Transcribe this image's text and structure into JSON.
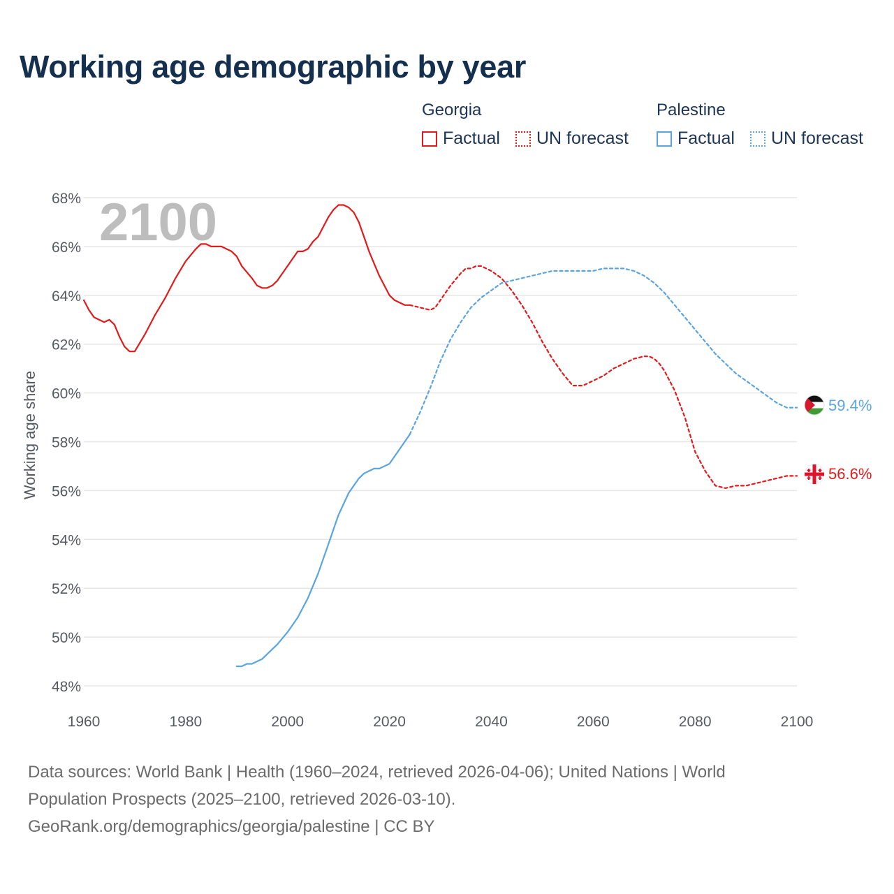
{
  "title": "Working age demographic by year",
  "legend": {
    "groups": [
      {
        "country": "Georgia",
        "factual_label": "Factual",
        "forecast_label": "UN forecast",
        "color": "#e31a1c"
      },
      {
        "country": "Palestine",
        "factual_label": "Factual",
        "forecast_label": "UN forecast",
        "color": "#5aa5e0"
      }
    ]
  },
  "chart_data": {
    "type": "line",
    "title": "Working age demographic by year",
    "xlabel": "",
    "ylabel": "Working age share",
    "xlim": [
      1960,
      2100
    ],
    "ylim": [
      48,
      68
    ],
    "x_ticks": [
      1960,
      1980,
      2000,
      2020,
      2040,
      2060,
      2080,
      2100
    ],
    "x_tick_labels": [
      "1960",
      "1980",
      "2000",
      "2020",
      "2040",
      "2060",
      "2080",
      "2100"
    ],
    "y_ticks": [
      48,
      50,
      52,
      54,
      56,
      58,
      60,
      62,
      64,
      66,
      68
    ],
    "y_tick_labels": [
      "48%",
      "50%",
      "52%",
      "54%",
      "56%",
      "58%",
      "60%",
      "62%",
      "64%",
      "66%",
      "68%"
    ],
    "current_year_label": "2100",
    "series": [
      {
        "name": "Georgia",
        "kind": "Factual",
        "color": "#e31a1c",
        "x": [
          1960,
          1961,
          1962,
          1964,
          1965,
          1966,
          1967,
          1968,
          1969,
          1970,
          1972,
          1974,
          1976,
          1978,
          1980,
          1982,
          1983,
          1984,
          1985,
          1986,
          1987,
          1988,
          1989,
          1990,
          1991,
          1993,
          1994,
          1995,
          1996,
          1997,
          1998,
          2000,
          2002,
          2003,
          2004,
          2005,
          2006,
          2007,
          2008,
          2009,
          2010,
          2011,
          2012,
          2013,
          2014,
          2015,
          2016,
          2017,
          2018,
          2019,
          2020,
          2021,
          2022,
          2023,
          2024
        ],
        "values": [
          63.8,
          63.4,
          63.1,
          62.9,
          63.0,
          62.8,
          62.3,
          61.9,
          61.7,
          61.7,
          62.4,
          63.2,
          63.9,
          64.7,
          65.4,
          65.9,
          66.1,
          66.1,
          66.0,
          66.0,
          66.0,
          65.9,
          65.8,
          65.6,
          65.2,
          64.7,
          64.4,
          64.3,
          64.3,
          64.4,
          64.6,
          65.2,
          65.8,
          65.8,
          65.9,
          66.2,
          66.4,
          66.8,
          67.2,
          67.5,
          67.7,
          67.7,
          67.6,
          67.4,
          67.0,
          66.4,
          65.8,
          65.3,
          64.8,
          64.4,
          64.0,
          63.8,
          63.7,
          63.6,
          63.6
        ]
      },
      {
        "name": "Georgia",
        "kind": "UN forecast",
        "color": "#e31a1c",
        "x": [
          2024,
          2026,
          2028,
          2029,
          2030,
          2032,
          2034,
          2035,
          2036,
          2037,
          2038,
          2040,
          2042,
          2044,
          2046,
          2048,
          2050,
          2052,
          2054,
          2056,
          2058,
          2060,
          2062,
          2064,
          2066,
          2068,
          2070,
          2071,
          2072,
          2073,
          2074,
          2076,
          2078,
          2080,
          2082,
          2084,
          2086,
          2088,
          2090,
          2092,
          2094,
          2096,
          2098,
          2100
        ],
        "values": [
          63.6,
          63.5,
          63.4,
          63.5,
          63.8,
          64.4,
          64.9,
          65.1,
          65.1,
          65.2,
          65.2,
          65.0,
          64.7,
          64.2,
          63.6,
          62.9,
          62.1,
          61.4,
          60.8,
          60.3,
          60.3,
          60.5,
          60.7,
          61.0,
          61.2,
          61.4,
          61.5,
          61.5,
          61.4,
          61.2,
          60.9,
          60.1,
          59.0,
          57.6,
          56.8,
          56.2,
          56.1,
          56.2,
          56.2,
          56.3,
          56.4,
          56.5,
          56.6,
          56.6
        ]
      },
      {
        "name": "Palestine",
        "kind": "Factual",
        "color": "#5aa5e0",
        "x": [
          1990,
          1991,
          1992,
          1993,
          1994,
          1995,
          1996,
          1997,
          1998,
          2000,
          2002,
          2004,
          2006,
          2008,
          2010,
          2012,
          2014,
          2015,
          2016,
          2017,
          2018,
          2019,
          2020,
          2021,
          2022,
          2023,
          2024
        ],
        "values": [
          48.8,
          48.8,
          48.9,
          48.9,
          49.0,
          49.1,
          49.3,
          49.5,
          49.7,
          50.2,
          50.8,
          51.6,
          52.6,
          53.8,
          55.0,
          55.9,
          56.5,
          56.7,
          56.8,
          56.9,
          56.9,
          57.0,
          57.1,
          57.4,
          57.7,
          58.0,
          58.3
        ]
      },
      {
        "name": "Palestine",
        "kind": "UN forecast",
        "color": "#5aa5e0",
        "x": [
          2024,
          2026,
          2028,
          2030,
          2032,
          2034,
          2036,
          2038,
          2040,
          2042,
          2044,
          2046,
          2048,
          2050,
          2052,
          2054,
          2056,
          2058,
          2060,
          2062,
          2064,
          2066,
          2068,
          2070,
          2072,
          2074,
          2076,
          2078,
          2080,
          2082,
          2084,
          2086,
          2088,
          2090,
          2092,
          2094,
          2096,
          2098,
          2100
        ],
        "values": [
          58.3,
          59.2,
          60.2,
          61.3,
          62.2,
          62.9,
          63.5,
          63.9,
          64.2,
          64.5,
          64.6,
          64.7,
          64.8,
          64.9,
          65.0,
          65.0,
          65.0,
          65.0,
          65.0,
          65.1,
          65.1,
          65.1,
          65.0,
          64.8,
          64.5,
          64.1,
          63.6,
          63.1,
          62.6,
          62.1,
          61.6,
          61.2,
          60.8,
          60.5,
          60.2,
          59.9,
          59.6,
          59.4,
          59.4
        ]
      }
    ],
    "end_labels": [
      {
        "country": "Palestine",
        "value_label": "59.4%",
        "color": "#5aa5e0"
      },
      {
        "country": "Georgia",
        "value_label": "56.6%",
        "color": "#e31a1c"
      }
    ]
  },
  "source": {
    "line1": "Data sources: World Bank | Health (1960–2024, retrieved 2026-04-06); United Nations | World",
    "line2": "Population Prospects (2025–2100, retrieved 2026-03-10).",
    "line3": "GeoRank.org/demographics/georgia/palestine | CC BY"
  }
}
